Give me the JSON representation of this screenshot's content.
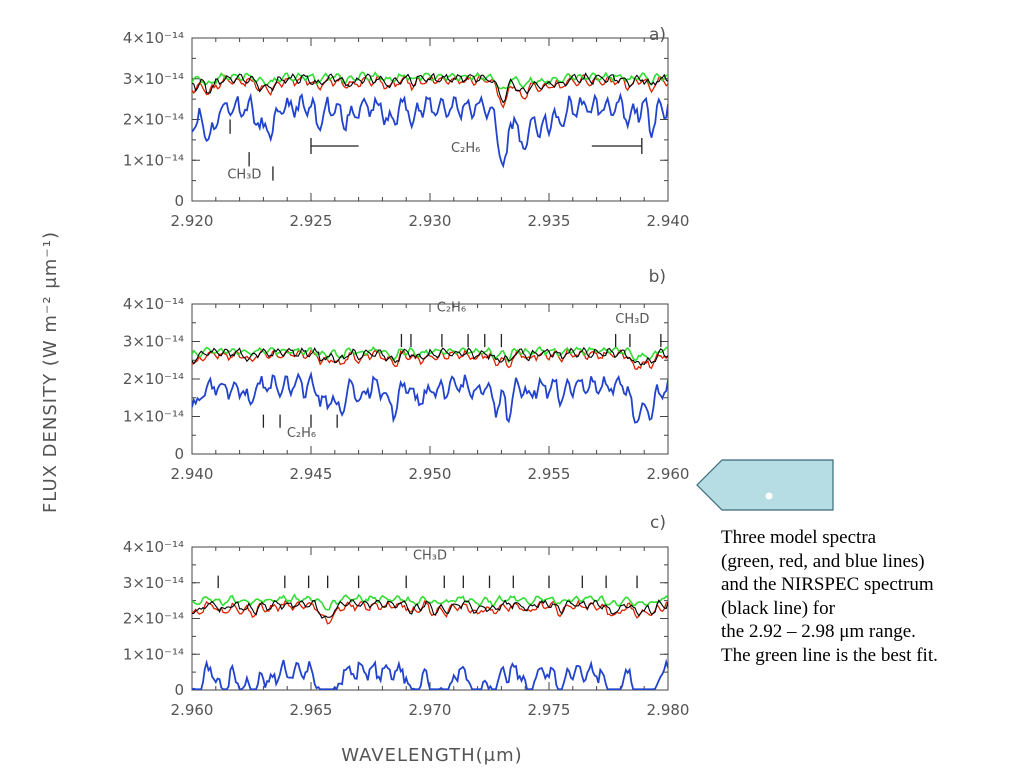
{
  "figure": {
    "y_axis_title": "FLUX DENSITY (W m⁻² μm⁻¹)",
    "x_axis_title": "WAVELENGTH(μm)"
  },
  "caption": {
    "lines": [
      "Three model spectra",
      "(green, red, and blue lines)",
      "and the NIRSPEC spectrum",
      "(black line) for",
      "the 2.92 – 2.98 μm range.",
      "The green line is the best fit."
    ]
  },
  "colors": {
    "nirspec": "#000000",
    "model_green": "#33dd33",
    "model_red": "#dd2200",
    "model_blue": "#2244cc",
    "pointer_fill": "#b6dde3"
  },
  "chart_data": [
    {
      "type": "line",
      "panel_label": "a)",
      "xlim": [
        2.92,
        2.94
      ],
      "ylim": [
        0,
        4e-14
      ],
      "xticks": [
        2.92,
        2.925,
        2.93,
        2.935,
        2.94
      ],
      "xtick_labels": [
        "2.920",
        "2.925",
        "2.930",
        "2.935",
        "2.940"
      ],
      "ytick_labels": [
        "0",
        "1×10⁻¹⁴",
        "2×10⁻¹⁴",
        "3×10⁻¹⁴",
        "4×10⁻¹⁴"
      ],
      "series_baselines": {
        "black": 3e-14,
        "green": 3.05e-14,
        "red": 2.95e-14,
        "blue": 2.3e-14
      },
      "line_markers": [
        2.9216,
        2.9224,
        2.9234
      ],
      "annotations": [
        {
          "label": "CH₃D",
          "x": 2.9222,
          "y": 5.5e-15
        },
        {
          "label": "C₂H₆",
          "x": 2.9315,
          "y": 1.2e-14
        }
      ],
      "bracket": {
        "from": 2.925,
        "to": 2.9389,
        "arm_end_left": 2.927,
        "arm_start_right": 2.9368,
        "y": 1.35e-14
      }
    },
    {
      "type": "line",
      "panel_label": "b)",
      "xlim": [
        2.94,
        2.96
      ],
      "ylim": [
        0,
        4e-14
      ],
      "xticks": [
        2.94,
        2.945,
        2.95,
        2.955,
        2.96
      ],
      "xtick_labels": [
        "2.940",
        "2.945",
        "2.950",
        "2.955",
        "2.960"
      ],
      "ytick_labels": [
        "0",
        "1×10⁻¹⁴",
        "2×10⁻¹⁴",
        "3×10⁻¹⁴",
        "4×10⁻¹⁴"
      ],
      "series_baselines": {
        "black": 2.7e-14,
        "green": 2.75e-14,
        "red": 2.65e-14,
        "blue": 1.8e-14
      },
      "line_markers_low": [
        2.943,
        2.9437,
        2.945,
        2.9461
      ],
      "line_markers_high": [
        2.9488,
        2.9492,
        2.9505,
        2.9516,
        2.9523,
        2.953,
        2.9578,
        2.9584,
        2.9597
      ],
      "annotations": [
        {
          "label": "C₂H₆",
          "x": 2.9446,
          "y": 4.5e-15
        },
        {
          "label": "C₂H₆",
          "x": 2.9509,
          "y": 3.8e-14
        },
        {
          "label": "CH₃D",
          "x": 2.9585,
          "y": 3.5e-14
        }
      ]
    },
    {
      "type": "line",
      "panel_label": "c)",
      "xlim": [
        2.96,
        2.98
      ],
      "ylim": [
        0,
        4e-14
      ],
      "xticks": [
        2.96,
        2.965,
        2.97,
        2.975,
        2.98
      ],
      "xtick_labels": [
        "2.960",
        "2.965",
        "2.970",
        "2.975",
        "2.980"
      ],
      "ytick_labels": [
        "0",
        "1×10⁻¹⁴",
        "2×10⁻¹⁴",
        "3×10⁻¹⁴",
        "4×10⁻¹⁴"
      ],
      "series_baselines": {
        "black": 2.4e-14,
        "green": 2.55e-14,
        "red": 2.35e-14,
        "blue": 5e-15
      },
      "line_markers_high": [
        2.9611,
        2.9639,
        2.9649,
        2.9657,
        2.967,
        2.969,
        2.9706,
        2.9714,
        2.9725,
        2.9735,
        2.975,
        2.9764,
        2.9774,
        2.9787
      ],
      "annotations": [
        {
          "label": "CH₃D",
          "x": 2.97,
          "y": 3.65e-14
        }
      ]
    }
  ]
}
